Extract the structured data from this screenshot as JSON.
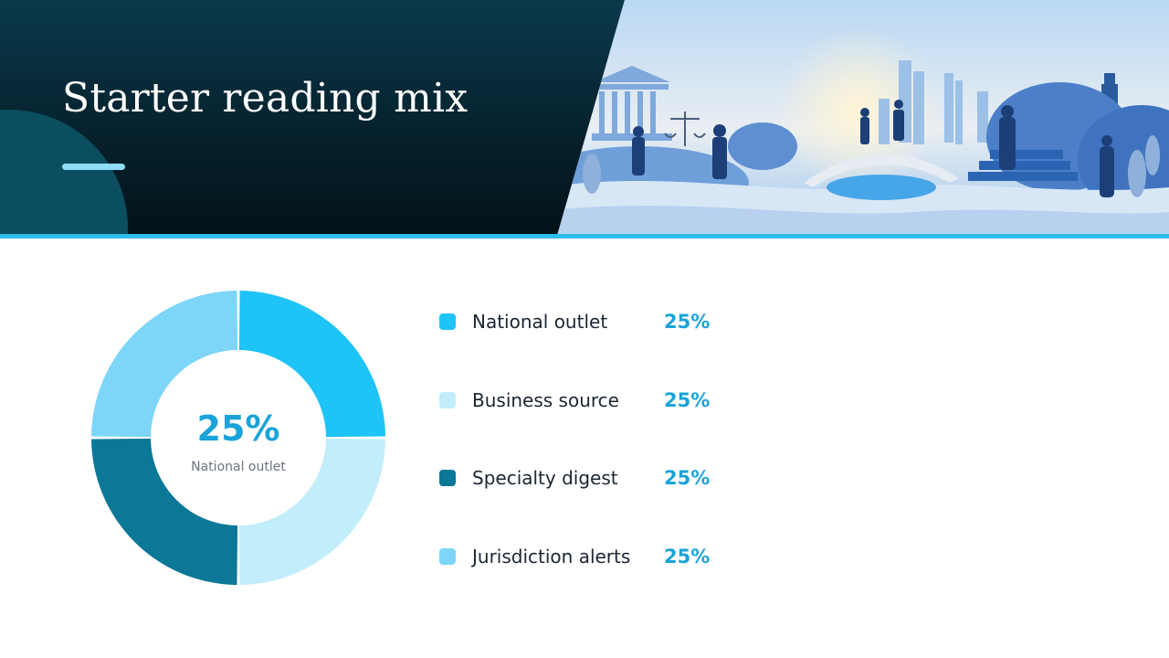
{
  "header": {
    "title": "Starter reading mix"
  },
  "colors": {
    "accent": "#1aa3d8",
    "header_dark": "#06222e",
    "rule": "#2cbde9"
  },
  "chart_data": {
    "type": "pie",
    "style": "donut",
    "center_value": "25%",
    "center_label": "National outlet",
    "categories": [
      "National outlet",
      "Business source",
      "Specialty digest",
      "Jurisdiction alerts"
    ],
    "values": [
      25,
      25,
      25,
      25
    ],
    "value_labels": [
      "25%",
      "25%",
      "25%",
      "25%"
    ],
    "colors": [
      "#1ec3f7",
      "#c2edfb",
      "#0b7898",
      "#7dd6f7"
    ],
    "legend_position": "right"
  }
}
